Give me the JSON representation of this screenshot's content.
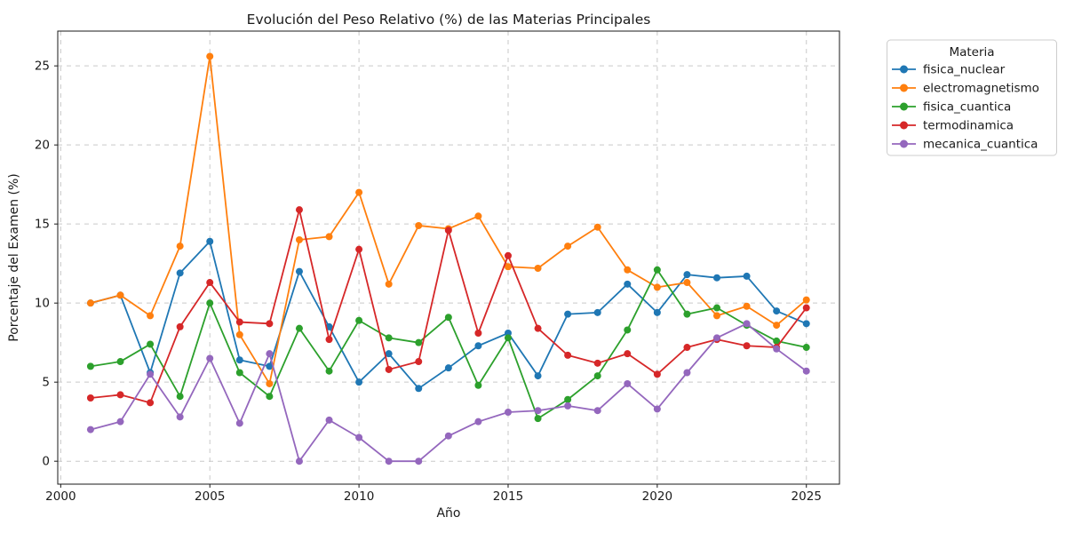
{
  "chart_data": {
    "type": "line",
    "title": "Evolución del Peso Relativo (%) de las Materias Principales",
    "xlabel": "Año",
    "ylabel": "Porcentaje del Examen (%)",
    "legend_title": "Materia",
    "legend_position": "outside-top-right",
    "grid": true,
    "marker": "o",
    "x": [
      2001,
      2002,
      2003,
      2004,
      2005,
      2006,
      2007,
      2008,
      2009,
      2010,
      2011,
      2012,
      2013,
      2014,
      2015,
      2016,
      2017,
      2018,
      2019,
      2020,
      2021,
      2022,
      2023,
      2024,
      2025
    ],
    "series": [
      {
        "name": "fisica_nuclear",
        "color": "#1f77b4",
        "values": [
          10.0,
          10.5,
          5.6,
          11.9,
          13.9,
          6.4,
          6.0,
          12.0,
          8.5,
          5.0,
          6.8,
          4.6,
          5.9,
          7.3,
          8.1,
          5.4,
          9.3,
          9.4,
          11.2,
          9.4,
          11.8,
          11.6,
          11.7,
          9.5,
          8.7
        ]
      },
      {
        "name": "electromagnetismo",
        "color": "#ff7f0e",
        "values": [
          10.0,
          10.5,
          9.2,
          13.6,
          25.6,
          8.0,
          4.9,
          14.0,
          14.2,
          17.0,
          11.2,
          14.9,
          14.7,
          15.5,
          12.3,
          12.2,
          13.6,
          14.8,
          12.1,
          11.0,
          11.3,
          9.2,
          9.8,
          8.6,
          10.2
        ]
      },
      {
        "name": "fisica_cuantica",
        "color": "#2ca02c",
        "values": [
          6.0,
          6.3,
          7.4,
          4.1,
          10.0,
          5.6,
          4.1,
          8.4,
          5.7,
          8.9,
          7.8,
          7.5,
          9.1,
          4.8,
          7.8,
          2.7,
          3.9,
          5.4,
          8.3,
          12.1,
          9.3,
          9.7,
          8.6,
          7.6,
          7.2
        ]
      },
      {
        "name": "termodinamica",
        "color": "#d62728",
        "values": [
          4.0,
          4.2,
          3.7,
          8.5,
          11.3,
          8.8,
          8.7,
          15.9,
          7.7,
          13.4,
          5.8,
          6.3,
          14.6,
          8.1,
          13.0,
          8.4,
          6.7,
          6.2,
          6.8,
          5.5,
          7.2,
          7.7,
          7.3,
          7.2,
          9.7
        ]
      },
      {
        "name": "mecanica_cuantica",
        "color": "#9467bd",
        "values": [
          2.0,
          2.5,
          5.5,
          2.8,
          6.5,
          2.4,
          6.8,
          0.0,
          2.6,
          1.5,
          0.0,
          0.0,
          1.6,
          2.5,
          3.1,
          3.2,
          3.5,
          3.2,
          4.9,
          3.3,
          5.6,
          7.8,
          8.7,
          7.1,
          5.7
        ]
      }
    ],
    "xticks": [
      2000,
      2005,
      2010,
      2015,
      2020,
      2025
    ],
    "yticks": [
      0,
      5,
      10,
      15,
      20,
      25
    ],
    "xlim": [
      1999.9,
      2026.11
    ],
    "ylim": [
      -1.45,
      27.2
    ]
  }
}
